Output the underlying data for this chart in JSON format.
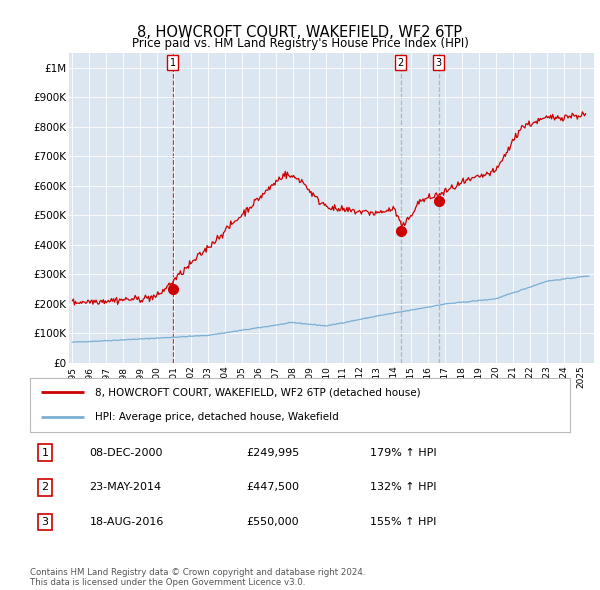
{
  "title": "8, HOWCROFT COURT, WAKEFIELD, WF2 6TP",
  "subtitle": "Price paid vs. HM Land Registry's House Price Index (HPI)",
  "title_fontsize": 10.5,
  "subtitle_fontsize": 8.5,
  "plot_bg_color": "#dce6f1",
  "red_line_color": "#cc0000",
  "blue_line_color": "#7bafd4",
  "vline1_color": "#cc0000",
  "vline23_color": "#aaaaaa",
  "sale1_date": 2000.93,
  "sale1_price": 249995,
  "sale1_label": "1",
  "sale2_date": 2014.39,
  "sale2_price": 447500,
  "sale2_label": "2",
  "sale3_date": 2016.63,
  "sale3_price": 550000,
  "sale3_label": "3",
  "xlim": [
    1994.8,
    2025.8
  ],
  "ylim": [
    0,
    1050000
  ],
  "yticks": [
    0,
    100000,
    200000,
    300000,
    400000,
    500000,
    600000,
    700000,
    800000,
    900000,
    1000000
  ],
  "ytick_labels": [
    "£0",
    "£100K",
    "£200K",
    "£300K",
    "£400K",
    "£500K",
    "£600K",
    "£700K",
    "£800K",
    "£900K",
    "£1M"
  ],
  "footer_text": "Contains HM Land Registry data © Crown copyright and database right 2024.\nThis data is licensed under the Open Government Licence v3.0.",
  "legend_entry1": "8, HOWCROFT COURT, WAKEFIELD, WF2 6TP (detached house)",
  "legend_entry2": "HPI: Average price, detached house, Wakefield",
  "table_rows": [
    [
      "1",
      "08-DEC-2000",
      "£249,995",
      "179% ↑ HPI"
    ],
    [
      "2",
      "23-MAY-2014",
      "£447,500",
      "132% ↑ HPI"
    ],
    [
      "3",
      "18-AUG-2016",
      "£550,000",
      "155% ↑ HPI"
    ]
  ]
}
